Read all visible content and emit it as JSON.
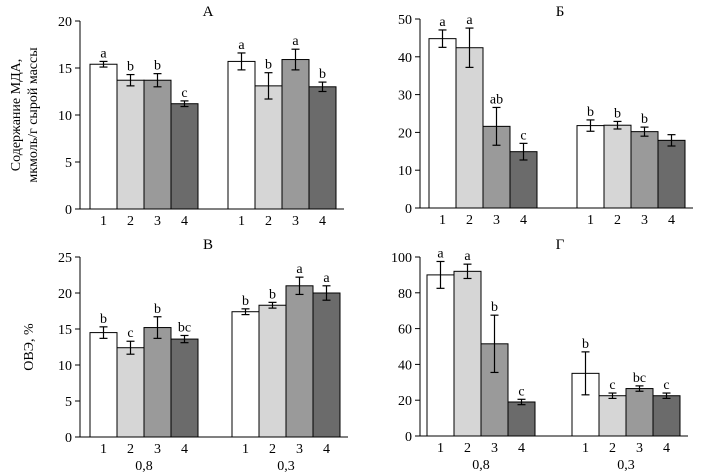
{
  "chart_data": [
    {
      "type": "bar",
      "title": "А",
      "ylabel": [
        "Содержание МДА,",
        "мкмоль/г сырой массы"
      ],
      "ylim": [
        0,
        20
      ],
      "yticks": [
        0,
        5,
        10,
        15,
        20
      ],
      "groups": [
        {
          "label": "",
          "categories": [
            "1",
            "2",
            "3",
            "4"
          ],
          "values": [
            15.4,
            13.7,
            13.7,
            11.2
          ],
          "errors": [
            0.3,
            0.6,
            0.7,
            0.3
          ],
          "letters": [
            "a",
            "b",
            "b",
            "c"
          ]
        },
        {
          "label": "",
          "categories": [
            "1",
            "2",
            "3",
            "4"
          ],
          "values": [
            15.7,
            13.1,
            15.9,
            13.0
          ],
          "errors": [
            0.9,
            1.4,
            1.1,
            0.5
          ],
          "letters": [
            "a",
            "b",
            "a",
            "b"
          ]
        }
      ]
    },
    {
      "type": "bar",
      "title": "Б",
      "ylabel": [],
      "ylim": [
        0,
        50
      ],
      "yticks": [
        0,
        10,
        20,
        30,
        40,
        50
      ],
      "groups": [
        {
          "label": "",
          "categories": [
            "1",
            "2",
            "3",
            "4"
          ],
          "values": [
            44.8,
            42.4,
            21.6,
            14.9
          ],
          "errors": [
            2.3,
            5.2,
            5.0,
            2.2
          ],
          "letters": [
            "a",
            "a",
            "ab",
            "c"
          ]
        },
        {
          "label": "",
          "categories": [
            "1",
            "2",
            "3",
            "4"
          ],
          "values": [
            21.8,
            21.9,
            20.2,
            17.9
          ],
          "errors": [
            1.5,
            1.0,
            1.2,
            1.5
          ],
          "letters": [
            "b",
            "b",
            "b",
            ""
          ]
        }
      ]
    },
    {
      "type": "bar",
      "title": "В",
      "ylabel": [
        "ОВЭ, %"
      ],
      "ylim": [
        0,
        25
      ],
      "yticks": [
        0,
        5,
        10,
        15,
        20,
        25
      ],
      "groups": [
        {
          "label": "0,8",
          "categories": [
            "1",
            "2",
            "3",
            "4"
          ],
          "values": [
            14.5,
            12.4,
            15.2,
            13.6
          ],
          "errors": [
            0.8,
            0.9,
            1.5,
            0.5
          ],
          "letters": [
            "b",
            "c",
            "b",
            "bc"
          ]
        },
        {
          "label": "0,3",
          "categories": [
            "1",
            "2",
            "3",
            "4"
          ],
          "values": [
            17.4,
            18.3,
            21.0,
            20.0
          ],
          "errors": [
            0.4,
            0.4,
            1.2,
            1.0
          ],
          "letters": [
            "b",
            "b",
            "a",
            "a"
          ]
        }
      ]
    },
    {
      "type": "bar",
      "title": "Г",
      "ylabel": [],
      "ylim": [
        0,
        100
      ],
      "yticks": [
        0,
        20,
        40,
        60,
        80,
        100
      ],
      "groups": [
        {
          "label": "0,8",
          "categories": [
            "1",
            "2",
            "3",
            "4"
          ],
          "values": [
            90.0,
            92.0,
            51.5,
            19.0
          ],
          "errors": [
            7.5,
            4.0,
            16.0,
            1.5
          ],
          "letters": [
            "a",
            "a",
            "b",
            "c"
          ]
        },
        {
          "label": "0,3",
          "categories": [
            "1",
            "2",
            "3",
            "4"
          ],
          "values": [
            35.0,
            22.5,
            26.5,
            22.5
          ],
          "errors": [
            12.0,
            1.5,
            1.5,
            1.5
          ],
          "letters": [
            "b",
            "c",
            "bc",
            "c"
          ]
        }
      ]
    }
  ],
  "colors": {
    "bar_fills": [
      "#ffffff",
      "#d6d6d6",
      "#9a9a9a",
      "#6b6b6b"
    ],
    "stroke": "#000000"
  }
}
